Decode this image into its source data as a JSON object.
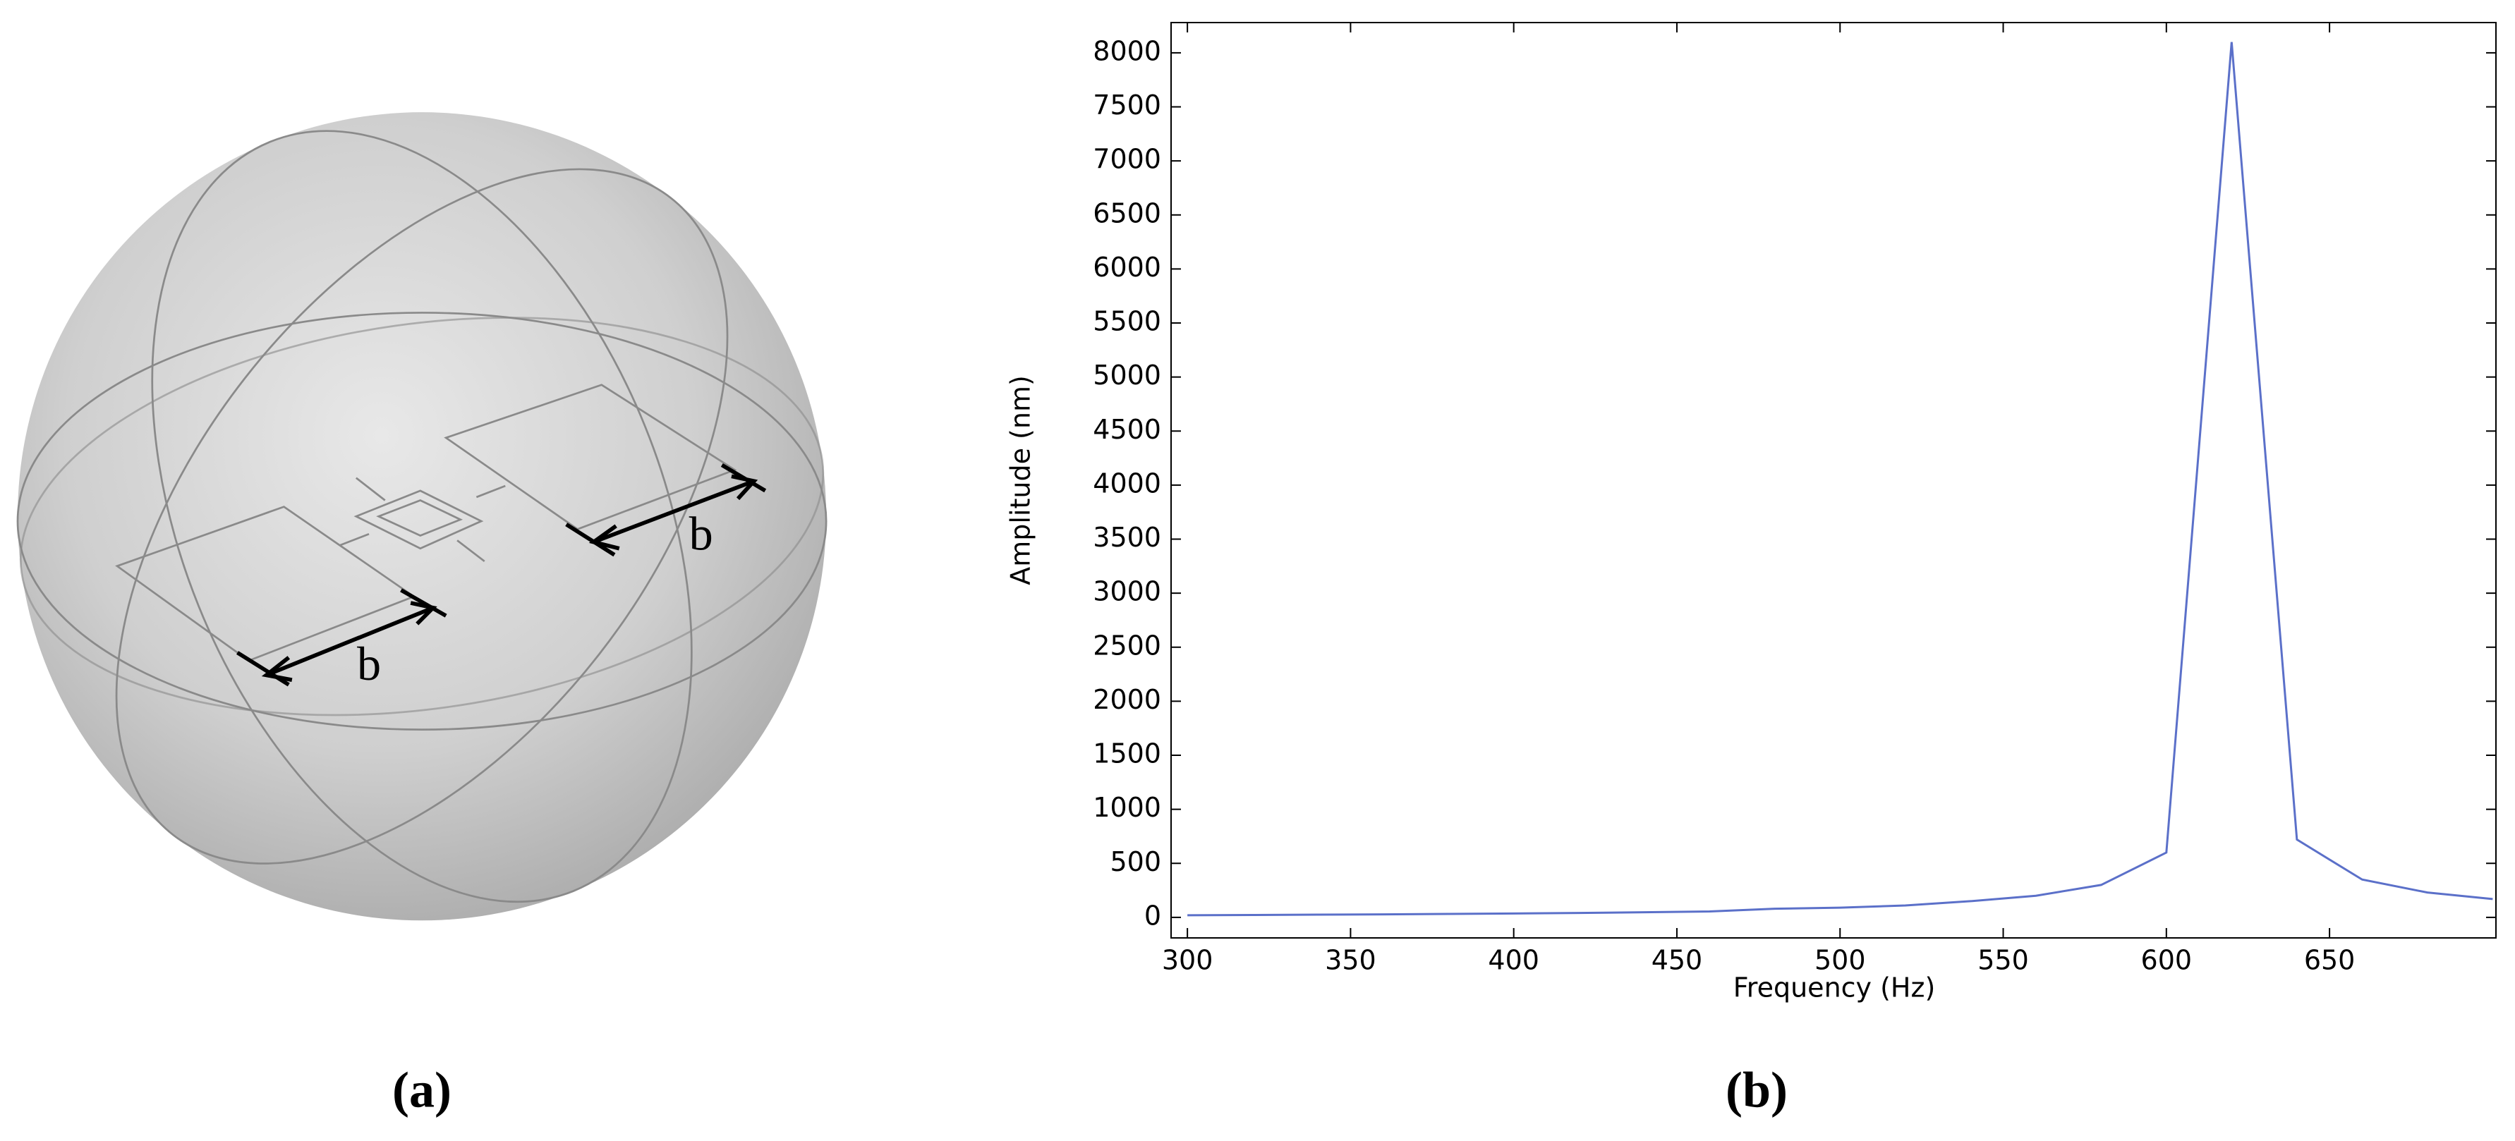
{
  "figure": {
    "dimension_labels": [
      "b",
      "b"
    ],
    "captions": [
      "(a)",
      "(b)"
    ]
  },
  "chart_data": {
    "type": "line",
    "x_label": "Frequency (Hz)",
    "y_label": "Amplitude (nm)",
    "x": [
      300,
      320,
      340,
      360,
      380,
      400,
      420,
      440,
      460,
      480,
      500,
      520,
      540,
      560,
      580,
      600,
      620,
      640,
      660,
      680,
      700
    ],
    "series": [
      {
        "name": "Amplitude",
        "color": "#5b70c9",
        "values": [
          20,
          22,
          25,
          28,
          32,
          36,
          41,
          47,
          55,
          80,
          90,
          110,
          150,
          200,
          300,
          600,
          8100,
          720,
          350,
          230,
          170
        ]
      }
    ],
    "xlim": [
      295,
      701
    ],
    "xticks": [
      300,
      350,
      400,
      450,
      500,
      550,
      600,
      650
    ],
    "ylim": [
      -190,
      8280
    ],
    "yticks": [
      0,
      500,
      1000,
      1500,
      2000,
      2500,
      3000,
      3500,
      4000,
      4500,
      5000,
      5500,
      6000,
      6500,
      7000,
      7500,
      8000
    ]
  }
}
